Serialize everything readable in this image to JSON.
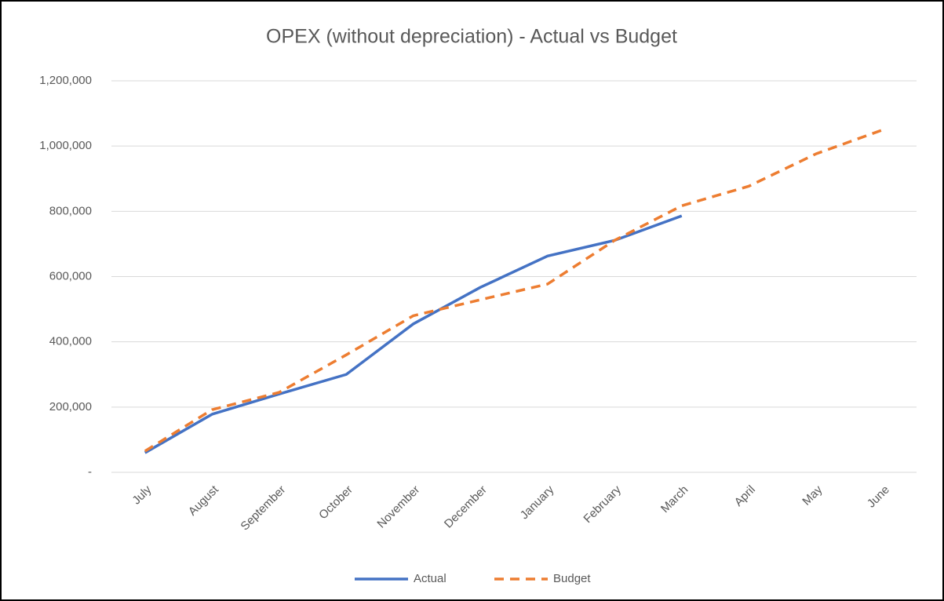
{
  "chart_data": {
    "type": "line",
    "title": "OPEX (without depreciation) - Actual vs Budget",
    "categories": [
      "July",
      "August",
      "September",
      "October",
      "November",
      "December",
      "January",
      "February",
      "March",
      "April",
      "May",
      "June"
    ],
    "series": [
      {
        "name": "Actual",
        "color": "#4472c4",
        "dash": "solid",
        "values": [
          60000,
          178000,
          240000,
          300000,
          455000,
          567000,
          663000,
          711000,
          786000,
          null,
          null,
          null
        ]
      },
      {
        "name": "Budget",
        "color": "#ed7d31",
        "dash": "dashed",
        "values": [
          65000,
          192000,
          245000,
          360000,
          480000,
          529000,
          577000,
          711000,
          817000,
          877000,
          976000,
          1050000
        ]
      }
    ],
    "ylim": [
      0,
      1200000
    ],
    "yticks": [
      {
        "value": 0,
        "label": "-"
      },
      {
        "value": 200000,
        "label": "200,000"
      },
      {
        "value": 400000,
        "label": "400,000"
      },
      {
        "value": 600000,
        "label": "600,000"
      },
      {
        "value": 800000,
        "label": "800,000"
      },
      {
        "value": 1000000,
        "label": "1,000,000"
      },
      {
        "value": 1200000,
        "label": "1,200,000"
      }
    ],
    "grid": true,
    "legend": "bottom"
  }
}
